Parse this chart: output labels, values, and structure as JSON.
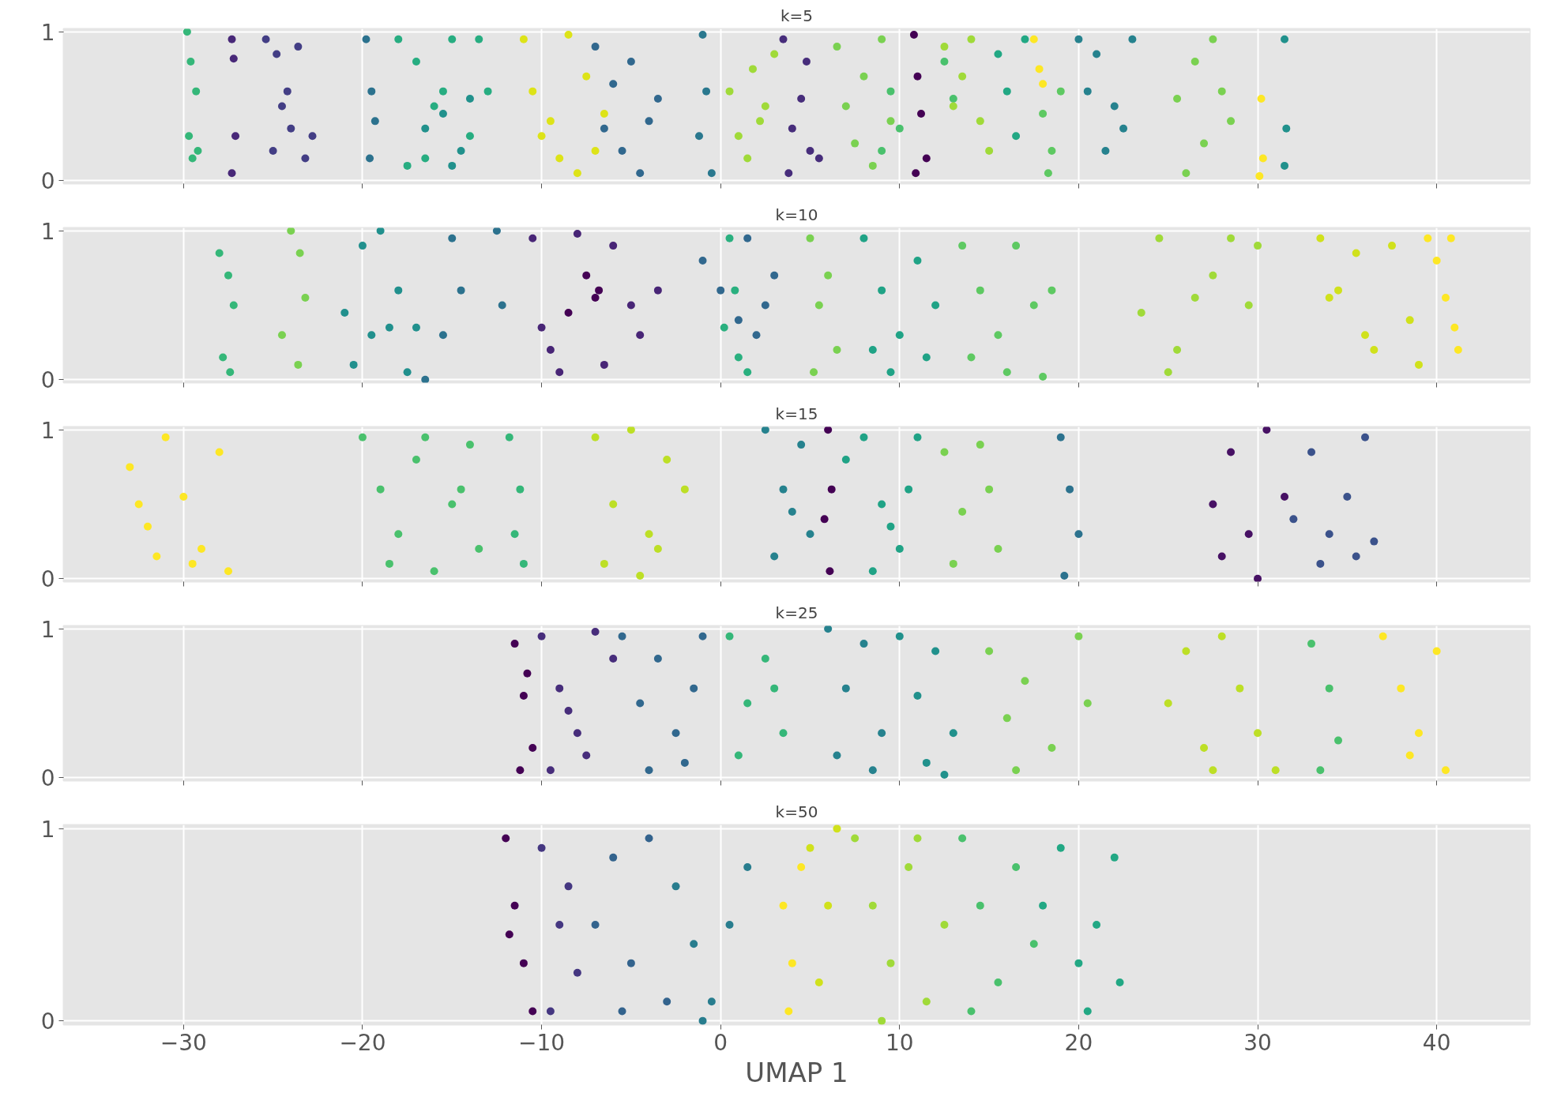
{
  "chart_data": [
    {
      "type": "scatter",
      "title": "k=5",
      "xlim": [
        -36.7,
        45.2
      ],
      "ylim": [
        -0.02,
        1.02
      ],
      "xticks": [
        -30,
        -20,
        -10,
        0,
        10,
        20,
        30,
        40
      ],
      "yticks": [
        0,
        1
      ],
      "tick_labels": "y",
      "grid": true,
      "marker": "circle",
      "series": [
        {
          "color": "#35b779",
          "x": [
            -29.8,
            -29.6,
            -29.3,
            -29.7,
            -29.5,
            -29.2
          ],
          "values": [
            1.0,
            0.8,
            0.6,
            0.3,
            0.15,
            0.2
          ]
        },
        {
          "color": "#482878",
          "x": [
            -27.3,
            -27.2,
            -27.1,
            -27.3
          ],
          "values": [
            0.95,
            0.82,
            0.3,
            0.05
          ]
        },
        {
          "color": "#433e85",
          "x": [
            -25.4,
            -24.8,
            -24.2,
            -23.6,
            -25.0,
            -24.0,
            -23.2,
            -22.8,
            -24.5
          ],
          "values": [
            0.95,
            0.85,
            0.6,
            0.9,
            0.2,
            0.35,
            0.15,
            0.3,
            0.5
          ]
        },
        {
          "color": "#2c728e",
          "x": [
            -19.8,
            -19.5,
            -19.3,
            -19.6
          ],
          "values": [
            0.95,
            0.6,
            0.4,
            0.15
          ]
        },
        {
          "color": "#27ad81",
          "x": [
            -18.0,
            -17.0,
            -16.0,
            -15.0,
            -14.0,
            -13.0,
            -17.5,
            -16.5,
            -15.5,
            -13.5
          ],
          "values": [
            0.95,
            0.8,
            0.5,
            0.95,
            0.3,
            0.6,
            0.1,
            0.15,
            0.6,
            0.95
          ]
        },
        {
          "color": "#21918c",
          "x": [
            -16.5,
            -15.5,
            -14.5,
            -14.0,
            -15.0
          ],
          "values": [
            0.35,
            0.45,
            0.2,
            0.55,
            0.1
          ]
        },
        {
          "color": "#dde318",
          "x": [
            -11.0,
            -10.5,
            -9.5,
            -8.5,
            -7.5,
            -9.0,
            -10.0,
            -8.0,
            -6.5,
            -7.0
          ],
          "values": [
            0.95,
            0.6,
            0.4,
            0.98,
            0.7,
            0.15,
            0.3,
            0.05,
            0.45,
            0.2
          ]
        },
        {
          "color": "#31688e",
          "x": [
            -7.0,
            -6.0,
            -5.0,
            -4.0,
            -3.5,
            -5.5,
            -4.5,
            -6.5
          ],
          "values": [
            0.9,
            0.65,
            0.8,
            0.4,
            0.55,
            0.2,
            0.05,
            0.35
          ]
        },
        {
          "color": "#2a788e",
          "x": [
            -1.0,
            -0.8,
            -0.5,
            -1.2
          ],
          "values": [
            0.98,
            0.6,
            0.05,
            0.3
          ]
        },
        {
          "color": "#a0da39",
          "x": [
            0.5,
            1.0,
            1.8,
            2.5,
            3.0,
            1.5,
            2.2
          ],
          "values": [
            0.6,
            0.3,
            0.75,
            0.5,
            0.85,
            0.15,
            0.4
          ]
        },
        {
          "color": "#472d7b",
          "x": [
            3.5,
            4.0,
            4.5,
            5.0,
            5.5,
            3.8,
            4.8
          ],
          "values": [
            0.95,
            0.35,
            0.55,
            0.2,
            0.15,
            0.05,
            0.8
          ]
        },
        {
          "color": "#7ad151",
          "x": [
            6.5,
            7.0,
            7.5,
            8.0,
            8.5,
            9.0,
            9.5
          ],
          "values": [
            0.9,
            0.5,
            0.25,
            0.7,
            0.1,
            0.95,
            0.4
          ]
        },
        {
          "color": "#440154",
          "x": [
            10.8,
            11.0,
            11.2,
            11.5,
            10.9
          ],
          "values": [
            0.98,
            0.7,
            0.45,
            0.15,
            0.05
          ]
        },
        {
          "color": "#4ac16d",
          "x": [
            9.0,
            9.5,
            10.0,
            12.5,
            13.0
          ],
          "values": [
            0.2,
            0.6,
            0.35,
            0.8,
            0.55
          ]
        },
        {
          "color": "#a0da39",
          "x": [
            12.5,
            13.5,
            14.5,
            15.0,
            13.0,
            14.0
          ],
          "values": [
            0.9,
            0.7,
            0.4,
            0.2,
            0.5,
            0.95
          ]
        },
        {
          "color": "#22a884",
          "x": [
            15.5,
            16.0,
            16.5,
            17.0
          ],
          "values": [
            0.85,
            0.6,
            0.3,
            0.95
          ]
        },
        {
          "color": "#fde725",
          "x": [
            17.5,
            17.8,
            18.0
          ],
          "values": [
            0.95,
            0.75,
            0.65
          ]
        },
        {
          "color": "#5ec962",
          "x": [
            18.0,
            18.5,
            19.0,
            18.3
          ],
          "values": [
            0.45,
            0.2,
            0.6,
            0.05
          ]
        },
        {
          "color": "#26828e",
          "x": [
            20.0,
            21.0,
            22.0,
            23.0,
            21.5,
            22.5,
            20.5
          ],
          "values": [
            0.95,
            0.85,
            0.5,
            0.95,
            0.2,
            0.35,
            0.6
          ]
        },
        {
          "color": "#7ad151",
          "x": [
            25.5,
            26.5,
            27.5,
            28.5,
            26.0,
            27.0,
            28.0
          ],
          "values": [
            0.55,
            0.8,
            0.95,
            0.4,
            0.05,
            0.25,
            0.6
          ]
        },
        {
          "color": "#fde725",
          "x": [
            30.2,
            30.3,
            30.1
          ],
          "values": [
            0.55,
            0.15,
            0.03
          ]
        },
        {
          "color": "#21918c",
          "x": [
            31.5,
            31.6,
            31.5
          ],
          "values": [
            0.95,
            0.35,
            0.1
          ]
        }
      ]
    },
    {
      "type": "scatter",
      "title": "k=10",
      "xlim": [
        -36.7,
        45.2
      ],
      "ylim": [
        -0.02,
        1.02
      ],
      "xticks": [
        -30,
        -20,
        -10,
        0,
        10,
        20,
        30,
        40
      ],
      "yticks": [
        0,
        1
      ],
      "tick_labels": "y",
      "grid": true,
      "marker": "circle",
      "series": [
        {
          "color": "#35b779",
          "x": [
            -28.0,
            -27.5,
            -27.2,
            -27.8,
            -27.4
          ],
          "values": [
            0.85,
            0.7,
            0.5,
            0.15,
            0.05
          ]
        },
        {
          "color": "#7ad151",
          "x": [
            -24.0,
            -23.5,
            -23.2,
            -24.5,
            -23.6
          ],
          "values": [
            1.0,
            0.85,
            0.55,
            0.3,
            0.1
          ]
        },
        {
          "color": "#21908d",
          "x": [
            -21.0,
            -20.0,
            -19.0,
            -18.0,
            -17.0,
            -20.5,
            -19.5,
            -18.5,
            -17.5
          ],
          "values": [
            0.45,
            0.9,
            1.0,
            0.6,
            0.35,
            0.1,
            0.3,
            0.35,
            0.05
          ]
        },
        {
          "color": "#2c728e",
          "x": [
            -16.5,
            -15.0,
            -14.5,
            -12.5,
            -12.2,
            -15.5
          ],
          "values": [
            0.0,
            0.95,
            0.6,
            1.0,
            0.5,
            0.3
          ]
        },
        {
          "color": "#482576",
          "x": [
            -10.5,
            -9.5,
            -8.0,
            -6.0,
            -5.0,
            -3.5,
            -9.0,
            -6.5,
            -4.5,
            -10.0
          ],
          "values": [
            0.95,
            0.2,
            0.98,
            0.9,
            0.5,
            0.6,
            0.05,
            0.1,
            0.3,
            0.35
          ]
        },
        {
          "color": "#440154",
          "x": [
            -8.5,
            -7.5,
            -7.0,
            -6.8
          ],
          "values": [
            0.45,
            0.7,
            0.55,
            0.6
          ]
        },
        {
          "color": "#31688e",
          "x": [
            -1.0,
            0.0,
            1.5,
            2.5,
            3.0,
            2.0,
            1.0
          ],
          "values": [
            0.8,
            0.6,
            0.95,
            0.5,
            0.7,
            0.3,
            0.4
          ]
        },
        {
          "color": "#2ab07f",
          "x": [
            0.5,
            1.0,
            0.2,
            1.5,
            0.8
          ],
          "values": [
            0.95,
            0.15,
            0.35,
            0.05,
            0.6
          ]
        },
        {
          "color": "#7ad151",
          "x": [
            5.0,
            5.5,
            6.0,
            6.5,
            5.2
          ],
          "values": [
            0.95,
            0.5,
            0.7,
            0.2,
            0.05
          ]
        },
        {
          "color": "#20a386",
          "x": [
            8.0,
            9.0,
            10.0,
            11.0,
            12.0,
            9.5,
            11.5,
            8.5
          ],
          "values": [
            0.95,
            0.6,
            0.3,
            0.8,
            0.5,
            0.05,
            0.15,
            0.2
          ]
        },
        {
          "color": "#5ec962",
          "x": [
            13.5,
            14.5,
            15.5,
            16.5,
            17.5,
            18.5,
            14.0,
            16.0,
            18.0
          ],
          "values": [
            0.9,
            0.6,
            0.3,
            0.9,
            0.5,
            0.6,
            0.15,
            0.05,
            0.02
          ]
        },
        {
          "color": "#a0da39",
          "x": [
            23.5,
            24.5,
            25.5,
            26.5,
            27.5,
            28.5,
            30.0,
            29.5,
            25.0
          ],
          "values": [
            0.45,
            0.95,
            0.2,
            0.55,
            0.7,
            0.95,
            0.9,
            0.5,
            0.05
          ]
        },
        {
          "color": "#d0e11c",
          "x": [
            33.5,
            34.5,
            35.5,
            36.5,
            37.5,
            38.5,
            39.0,
            34.0,
            36.0
          ],
          "values": [
            0.95,
            0.6,
            0.85,
            0.2,
            0.9,
            0.4,
            0.1,
            0.55,
            0.3
          ]
        },
        {
          "color": "#fde725",
          "x": [
            39.5,
            40.0,
            40.5,
            41.0,
            41.2,
            40.8
          ],
          "values": [
            0.95,
            0.8,
            0.55,
            0.35,
            0.2,
            0.95
          ]
        }
      ]
    },
    {
      "type": "scatter",
      "title": "k=15",
      "xlim": [
        -36.7,
        45.2
      ],
      "ylim": [
        -0.02,
        1.02
      ],
      "xticks": [
        -30,
        -20,
        -10,
        0,
        10,
        20,
        30,
        40
      ],
      "yticks": [
        0,
        1
      ],
      "tick_labels": "y",
      "grid": true,
      "marker": "circle",
      "series": [
        {
          "color": "#fde725",
          "x": [
            -33.0,
            -32.0,
            -31.0,
            -30.0,
            -29.0,
            -28.0,
            -31.5,
            -29.5,
            -32.5,
            -27.5
          ],
          "values": [
            0.75,
            0.35,
            0.95,
            0.55,
            0.2,
            0.85,
            0.15,
            0.1,
            0.5,
            0.05
          ]
        },
        {
          "color": "#4ac16d",
          "x": [
            -20.0,
            -19.0,
            -18.0,
            -17.0,
            -16.0,
            -15.0,
            -14.0,
            -13.5,
            -18.5,
            -16.5,
            -14.5
          ],
          "values": [
            0.95,
            0.6,
            0.3,
            0.8,
            0.05,
            0.5,
            0.9,
            0.2,
            0.1,
            0.95,
            0.6
          ]
        },
        {
          "color": "#35b779",
          "x": [
            -11.8,
            -11.2,
            -11.5,
            -11.0
          ],
          "values": [
            0.95,
            0.6,
            0.3,
            0.1
          ]
        },
        {
          "color": "#bddf26",
          "x": [
            -7.0,
            -6.0,
            -5.0,
            -4.0,
            -3.0,
            -2.0,
            -6.5,
            -4.5,
            -3.5
          ],
          "values": [
            0.95,
            0.5,
            1.0,
            0.3,
            0.8,
            0.6,
            0.1,
            0.02,
            0.2
          ]
        },
        {
          "color": "#26828e",
          "x": [
            2.5,
            3.5,
            4.5,
            5.0,
            3.0,
            4.0
          ],
          "values": [
            1.0,
            0.6,
            0.9,
            0.3,
            0.15,
            0.45
          ]
        },
        {
          "color": "#440154",
          "x": [
            6.0,
            6.2,
            5.8,
            6.1
          ],
          "values": [
            1.0,
            0.6,
            0.4,
            0.05
          ]
        },
        {
          "color": "#20a386",
          "x": [
            7.0,
            8.0,
            9.0,
            10.0,
            11.0,
            8.5,
            10.5,
            9.5
          ],
          "values": [
            0.8,
            0.95,
            0.5,
            0.2,
            0.95,
            0.05,
            0.6,
            0.35
          ]
        },
        {
          "color": "#7ad151",
          "x": [
            12.5,
            13.5,
            14.5,
            15.5,
            13.0,
            15.0
          ],
          "values": [
            0.85,
            0.45,
            0.9,
            0.2,
            0.1,
            0.6
          ]
        },
        {
          "color": "#2c728e",
          "x": [
            19.0,
            19.5,
            20.0,
            19.2
          ],
          "values": [
            0.95,
            0.6,
            0.3,
            0.02
          ]
        },
        {
          "color": "#471164",
          "x": [
            27.5,
            28.5,
            29.5,
            30.5,
            31.5,
            28.0,
            30.0
          ],
          "values": [
            0.5,
            0.85,
            0.3,
            1.0,
            0.55,
            0.15,
            0.0
          ]
        },
        {
          "color": "#3b528b",
          "x": [
            32.0,
            33.0,
            34.0,
            35.0,
            36.0,
            36.5,
            33.5,
            35.5
          ],
          "values": [
            0.4,
            0.85,
            0.3,
            0.55,
            0.95,
            0.25,
            0.1,
            0.15
          ]
        }
      ]
    },
    {
      "type": "scatter",
      "title": "k=25",
      "xlim": [
        -36.7,
        45.2
      ],
      "ylim": [
        -0.02,
        1.02
      ],
      "xticks": [
        -30,
        -20,
        -10,
        0,
        10,
        20,
        30,
        40
      ],
      "yticks": [
        0,
        1
      ],
      "tick_labels": "y",
      "grid": true,
      "marker": "circle",
      "series": [
        {
          "color": "#440154",
          "x": [
            -11.5,
            -11.0,
            -10.5,
            -11.2,
            -10.8
          ],
          "values": [
            0.9,
            0.55,
            0.2,
            0.05,
            0.7
          ]
        },
        {
          "color": "#472d7b",
          "x": [
            -10.0,
            -9.0,
            -8.0,
            -7.0,
            -6.0,
            -9.5,
            -7.5,
            -8.5
          ],
          "values": [
            0.95,
            0.6,
            0.3,
            0.98,
            0.8,
            0.05,
            0.15,
            0.45
          ]
        },
        {
          "color": "#31688e",
          "x": [
            -5.5,
            -4.5,
            -3.5,
            -2.5,
            -1.5,
            -1.0,
            -4.0,
            -2.0
          ],
          "values": [
            0.95,
            0.5,
            0.8,
            0.3,
            0.6,
            0.95,
            0.05,
            0.1
          ]
        },
        {
          "color": "#35b779",
          "x": [
            0.5,
            1.5,
            2.5,
            3.5,
            1.0,
            3.0
          ],
          "values": [
            0.95,
            0.5,
            0.8,
            0.3,
            0.15,
            0.6
          ]
        },
        {
          "color": "#26828e",
          "x": [
            6.0,
            7.0,
            8.0,
            9.0,
            6.5,
            8.5
          ],
          "values": [
            1.0,
            0.6,
            0.9,
            0.3,
            0.15,
            0.05
          ]
        },
        {
          "color": "#21918c",
          "x": [
            10.0,
            11.0,
            12.0,
            13.0,
            12.5,
            11.5
          ],
          "values": [
            0.95,
            0.55,
            0.85,
            0.3,
            0.02,
            0.1
          ]
        },
        {
          "color": "#7ad151",
          "x": [
            15.0,
            16.0,
            17.0,
            18.5,
            20.0,
            20.5,
            16.5
          ],
          "values": [
            0.85,
            0.4,
            0.65,
            0.2,
            0.95,
            0.5,
            0.05
          ]
        },
        {
          "color": "#bddf26",
          "x": [
            25.0,
            26.0,
            27.0,
            28.0,
            29.0,
            30.0,
            31.0,
            27.5
          ],
          "values": [
            0.5,
            0.85,
            0.2,
            0.95,
            0.6,
            0.3,
            0.05,
            0.05
          ]
        },
        {
          "color": "#4ac16d",
          "x": [
            33.0,
            34.0,
            34.5,
            33.5
          ],
          "values": [
            0.9,
            0.6,
            0.25,
            0.05
          ]
        },
        {
          "color": "#fde725",
          "x": [
            37.0,
            38.0,
            39.0,
            40.0,
            40.5,
            38.5
          ],
          "values": [
            0.95,
            0.6,
            0.3,
            0.85,
            0.05,
            0.15
          ]
        }
      ]
    },
    {
      "type": "scatter",
      "title": "k=50",
      "xlabel": "UMAP 1",
      "xlim": [
        -36.7,
        45.2
      ],
      "ylim": [
        -0.02,
        1.02
      ],
      "xticks": [
        -30,
        -20,
        -10,
        0,
        10,
        20,
        30,
        40
      ],
      "yticks": [
        0,
        1
      ],
      "grid": true,
      "marker": "circle",
      "series": [
        {
          "color": "#440154",
          "x": [
            -12.0,
            -11.5,
            -11.0,
            -10.5,
            -11.8
          ],
          "values": [
            0.95,
            0.6,
            0.3,
            0.05,
            0.45
          ]
        },
        {
          "color": "#453781",
          "x": [
            -10.0,
            -9.0,
            -8.0,
            -9.5,
            -8.5
          ],
          "values": [
            0.9,
            0.5,
            0.25,
            0.05,
            0.7
          ]
        },
        {
          "color": "#33638d",
          "x": [
            -7.0,
            -6.0,
            -5.0,
            -4.0,
            -3.0,
            -5.5
          ],
          "values": [
            0.5,
            0.85,
            0.3,
            0.95,
            0.1,
            0.05
          ]
        },
        {
          "color": "#287d8e",
          "x": [
            -2.5,
            -1.5,
            -0.5,
            0.5,
            1.5,
            -1.0
          ],
          "values": [
            0.7,
            0.4,
            0.1,
            0.5,
            0.8,
            0.0
          ]
        },
        {
          "color": "#fde725",
          "x": [
            3.5,
            4.0,
            4.5,
            3.8
          ],
          "values": [
            0.6,
            0.3,
            0.8,
            0.05
          ]
        },
        {
          "color": "#d0e11c",
          "x": [
            5.0,
            6.0,
            6.5,
            5.5
          ],
          "values": [
            0.9,
            0.6,
            1.0,
            0.2
          ]
        },
        {
          "color": "#a0da39",
          "x": [
            7.5,
            8.5,
            9.5,
            10.5,
            11.5,
            12.5,
            9.0,
            11.0
          ],
          "values": [
            0.95,
            0.6,
            0.3,
            0.8,
            0.1,
            0.5,
            0.0,
            0.95
          ]
        },
        {
          "color": "#4ac16d",
          "x": [
            13.5,
            14.5,
            15.5,
            16.5,
            17.5,
            14.0
          ],
          "values": [
            0.95,
            0.6,
            0.2,
            0.8,
            0.4,
            0.05
          ]
        },
        {
          "color": "#22a884",
          "x": [
            18.0,
            19.0,
            20.0,
            21.0,
            22.0,
            22.3,
            20.5
          ],
          "values": [
            0.6,
            0.9,
            0.3,
            0.5,
            0.85,
            0.2,
            0.05
          ]
        }
      ]
    }
  ]
}
